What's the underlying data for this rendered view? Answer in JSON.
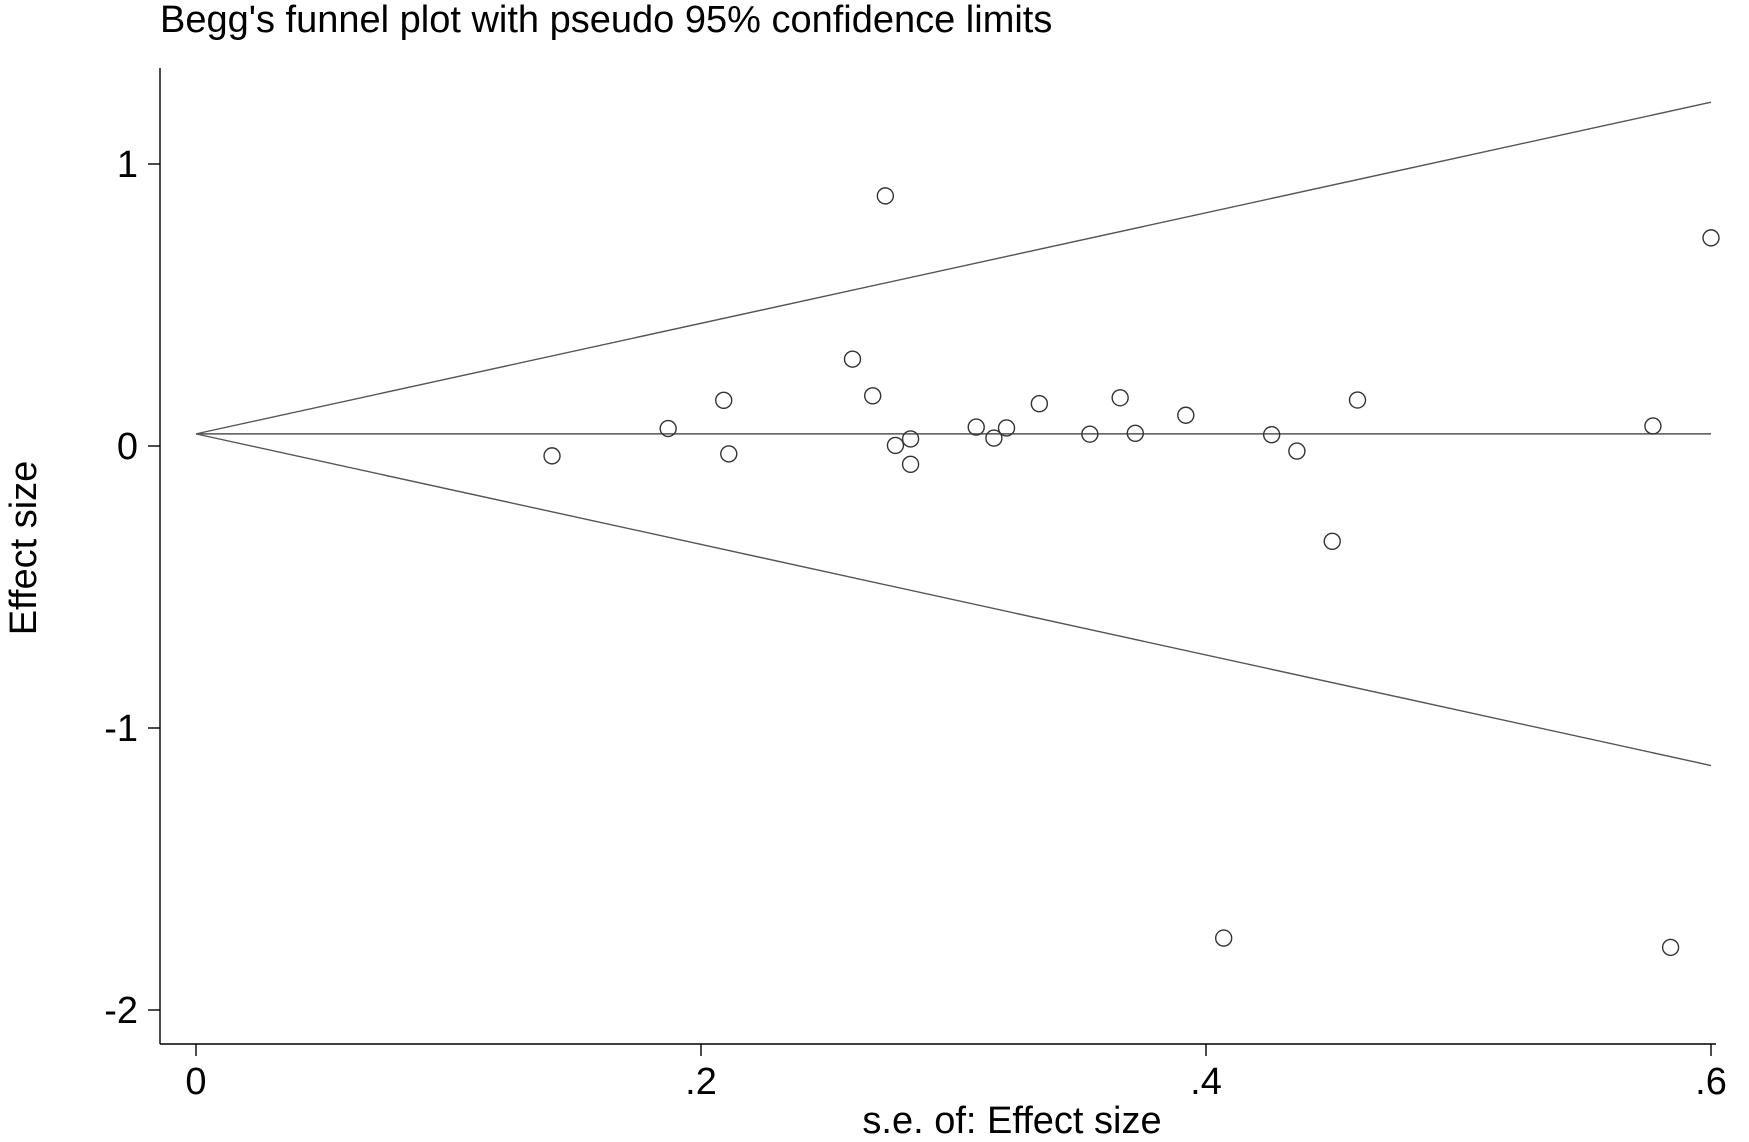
{
  "chart_data": {
    "type": "scatter",
    "title": "Begg's funnel plot with pseudo 95% confidence limits",
    "xlabel": "s.e. of: Effect size",
    "ylabel": "Effect size",
    "xlim": [
      0,
      0.6
    ],
    "ylim": [
      -2.1,
      1.33
    ],
    "xticks": [
      {
        "value": 0,
        "label": "0"
      },
      {
        "value": 0.2,
        "label": ".2"
      },
      {
        "value": 0.4,
        "label": ".4"
      },
      {
        "value": 0.6,
        "label": ".6"
      }
    ],
    "yticks": [
      {
        "value": 1,
        "label": "1"
      },
      {
        "value": 0,
        "label": "0"
      },
      {
        "value": -1,
        "label": "-1"
      },
      {
        "value": -2,
        "label": "-2"
      }
    ],
    "pooled_effect": 0.043,
    "confidence_z": 1.96,
    "series": [
      {
        "name": "studies",
        "points": [
          {
            "x": 0.141,
            "y": -0.035
          },
          {
            "x": 0.187,
            "y": 0.062
          },
          {
            "x": 0.209,
            "y": 0.162
          },
          {
            "x": 0.211,
            "y": -0.028
          },
          {
            "x": 0.26,
            "y": 0.308
          },
          {
            "x": 0.268,
            "y": 0.178
          },
          {
            "x": 0.273,
            "y": 0.887
          },
          {
            "x": 0.277,
            "y": 0.002
          },
          {
            "x": 0.283,
            "y": 0.025
          },
          {
            "x": 0.283,
            "y": -0.065
          },
          {
            "x": 0.309,
            "y": 0.067
          },
          {
            "x": 0.316,
            "y": 0.028
          },
          {
            "x": 0.321,
            "y": 0.064
          },
          {
            "x": 0.334,
            "y": 0.15
          },
          {
            "x": 0.354,
            "y": 0.042
          },
          {
            "x": 0.366,
            "y": 0.171
          },
          {
            "x": 0.372,
            "y": 0.045
          },
          {
            "x": 0.392,
            "y": 0.109
          },
          {
            "x": 0.407,
            "y": -1.745
          },
          {
            "x": 0.426,
            "y": 0.04
          },
          {
            "x": 0.436,
            "y": -0.018
          },
          {
            "x": 0.45,
            "y": -0.338
          },
          {
            "x": 0.46,
            "y": 0.163
          },
          {
            "x": 0.577,
            "y": 0.071
          },
          {
            "x": 0.584,
            "y": -1.778
          },
          {
            "x": 0.6,
            "y": 0.738
          }
        ]
      }
    ]
  }
}
